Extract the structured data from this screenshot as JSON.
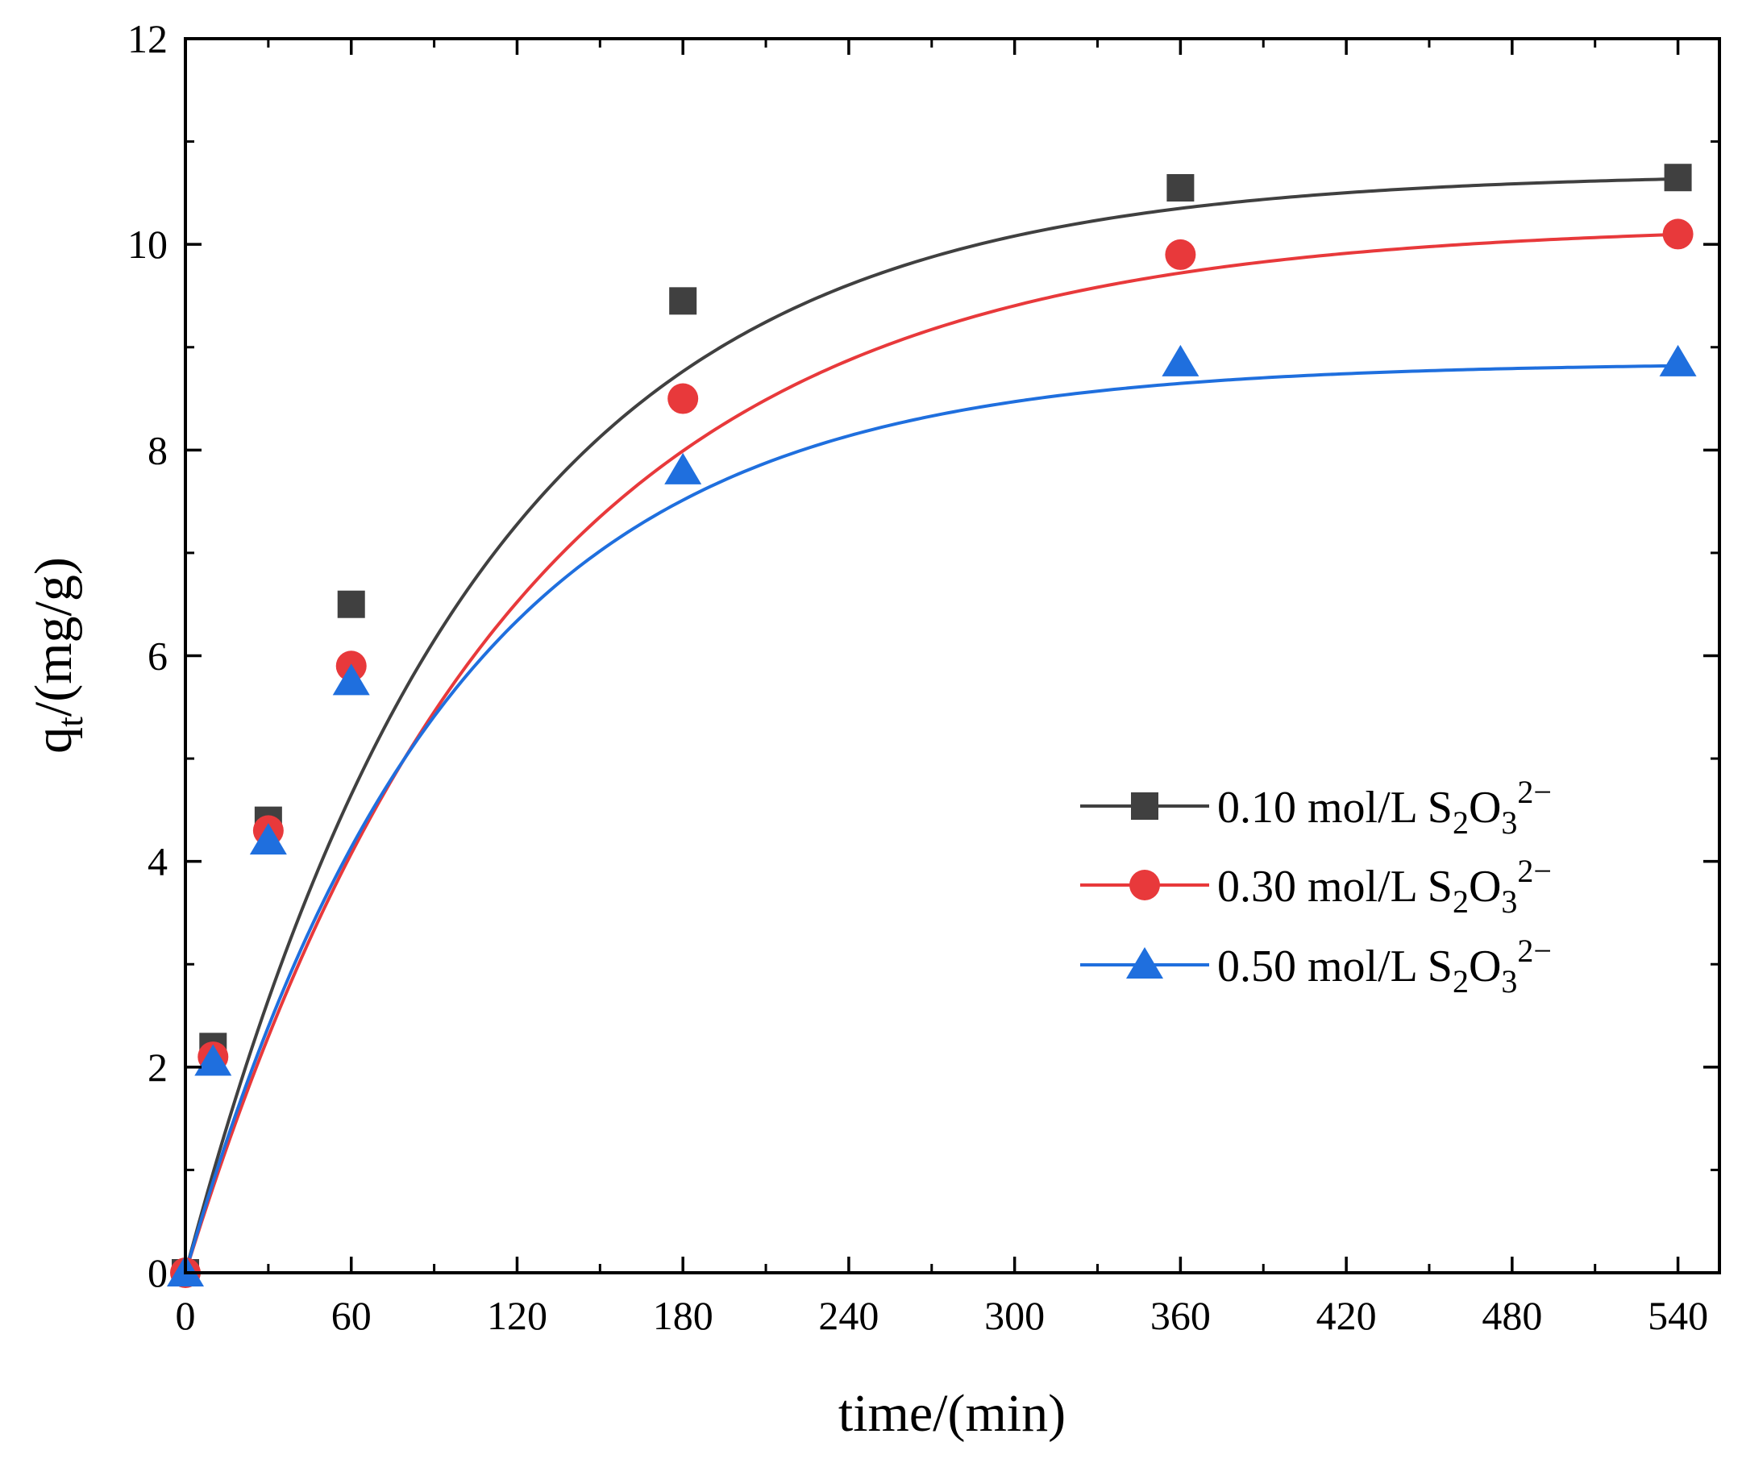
{
  "chart_data": {
    "type": "scatter",
    "title": "",
    "xlabel": "time/(min)",
    "ylabel": {
      "main": "q",
      "sub": "t",
      "rest": "/(mg/g)"
    },
    "xlim": [
      0,
      555
    ],
    "ylim": [
      0,
      12
    ],
    "xticks": [
      0,
      60,
      120,
      180,
      240,
      300,
      360,
      420,
      480,
      540
    ],
    "yticks": [
      0,
      2,
      4,
      6,
      8,
      10,
      12
    ],
    "grid": false,
    "legend_position": "center-right",
    "series": [
      {
        "name": "0.10 mol/L S2O3 2−",
        "label_parts": {
          "prefix": "0.10 mol/L S",
          "sub1": "2",
          "o": "O",
          "sub2": "3",
          "sup": "2−"
        },
        "marker": "square",
        "color": "#404040",
        "x": [
          0,
          10,
          30,
          60,
          180,
          360,
          540
        ],
        "y": [
          0,
          2.2,
          4.4,
          6.5,
          9.45,
          10.55,
          10.65
        ],
        "fit": {
          "qe": 10.7,
          "k": 0.0095
        }
      },
      {
        "name": "0.30 mol/L S2O3 2−",
        "label_parts": {
          "prefix": "0.30 mol/L S",
          "sub1": "2",
          "o": "O",
          "sub2": "3",
          "sup": "2−"
        },
        "marker": "circle",
        "color": "#e8393b",
        "x": [
          0,
          10,
          30,
          60,
          180,
          360,
          540
        ],
        "y": [
          0,
          2.1,
          4.3,
          5.9,
          8.5,
          9.9,
          10.1
        ],
        "fit": {
          "qe": 10.2,
          "k": 0.0085
        }
      },
      {
        "name": "0.50 mol/L S2O3 2−",
        "label_parts": {
          "prefix": "0.50 mol/L S",
          "sub1": "2",
          "o": "O",
          "sub2": "3",
          "sup": "2−"
        },
        "marker": "triangle",
        "color": "#1f6fde",
        "x": [
          0,
          10,
          30,
          60,
          180,
          360,
          540
        ],
        "y": [
          0,
          2.05,
          4.2,
          5.75,
          7.8,
          8.85,
          8.85
        ],
        "fit": {
          "qe": 8.85,
          "k": 0.0105
        }
      }
    ]
  }
}
